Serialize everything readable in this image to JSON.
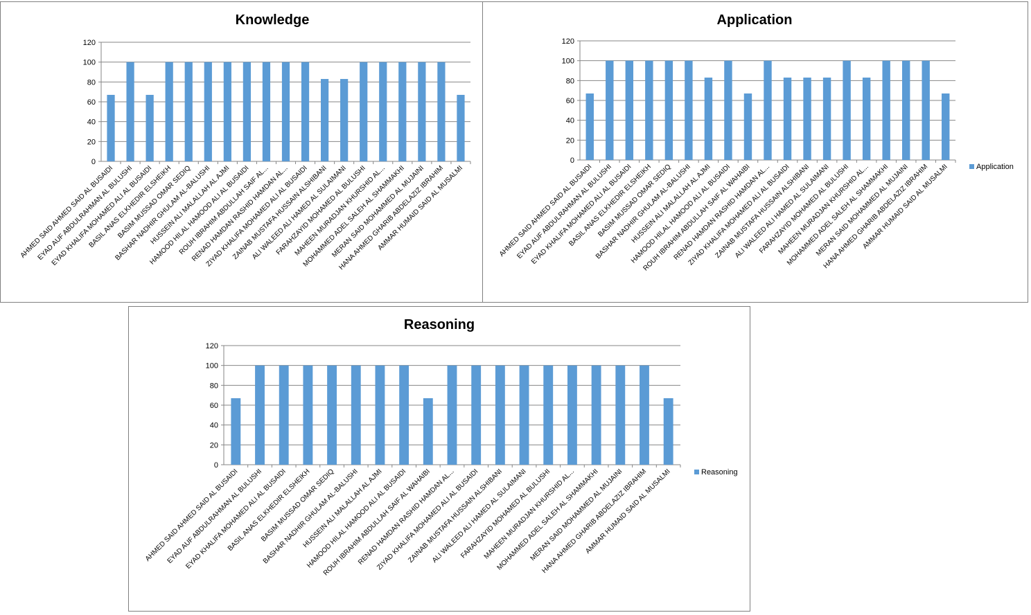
{
  "colors": {
    "bar": "#5B9BD5",
    "grid": "#868686",
    "axis": "#868686"
  },
  "chart_data": [
    {
      "id": "knowledge",
      "type": "bar",
      "title": "Knowledge",
      "legend": null,
      "ylim": [
        0,
        120
      ],
      "yticks": [
        "0",
        "20",
        "40",
        "60",
        "80",
        "100",
        "120"
      ],
      "categories": [
        "AHMED SAID AHMED  SAID AL BUSAIDI",
        "EYAD AUF ABDULRAHMAN AL BULUSHI",
        "EYAD KHALIFA MOHAMED ALI AL BUSAIDI",
        "BASIL ANAS ELKHEDIR ELSHEIKH",
        "BASIM MUSSAD OMAR SEDIQ",
        "BASHAR NADHIR GHULAM AL-BALUSHI",
        "HUSSEIN ALI MALALLAH AL AJMI",
        "HAMOOD HILAL HAMOOD ALI  AL BUSAIDI",
        "ROUH IBRAHIM ABDULLAH SAIF AL...",
        "RENAD HAMDAN RASHID HAMDAN AL...",
        "ZIYAD KHALIFA MOHAMED ALI AL BUSAIDI",
        "ZAINAB MUSTAFA HUSSAIN ALSHIBANI",
        "ALI WALEED ALI HAMED  AL SULAIMANI",
        "FARAHZAYID MOHAMED AL BULUSHI",
        "MAHEEN MURADJAN KHURSHID  AL...",
        "MOHAMMED ADEL SALEH AL SHAMMAKHI",
        "MERAN SAID MOHAMMED  AL MUJAINI",
        "HANA AHMED GHARIB ABDELAZIZ IBRAHIM",
        "AMMAR HUMAID SAID AL MUSALMI"
      ],
      "values": [
        67,
        100,
        67,
        100,
        100,
        100,
        100,
        100,
        100,
        100,
        100,
        83,
        83,
        100,
        100,
        100,
        100,
        100,
        67
      ]
    },
    {
      "id": "application",
      "type": "bar",
      "title": "Application",
      "legend": "Application",
      "ylim": [
        0,
        120
      ],
      "yticks": [
        "0",
        "20",
        "40",
        "60",
        "80",
        "100",
        "120"
      ],
      "categories": [
        "AHMED SAID AHMED  SAID AL BUSAIDI",
        "EYAD AUF ABDULRAHMAN AL BULUSHI",
        "EYAD KHALIFA MOHAMED ALI AL BUSAIDI",
        "BASIL ANAS ELKHEDIR ELSHEIKH",
        "BASIM MUSSAD OMAR SEDIQ",
        "BASHAR NADHIR GHULAM AL-BALUSHI",
        "HUSSEIN ALI MALALLAH AL AJMI",
        "HAMOOD HILAL HAMOOD ALI  AL BUSAIDI",
        "ROUH IBRAHIM ABDULLAH SAIF AL WAHAIBI",
        "RENAD HAMDAN RASHID HAMDAN AL...",
        "ZIYAD KHALIFA MOHAMED ALI AL BUSAIDI",
        "ZAINAB MUSTAFA HUSSAIN ALSHIBANI",
        "ALI WALEED ALI HAMED  AL SULAIMANI",
        "FARAHZAYID MOHAMED AL BULUSHI",
        "MAHEEN MURADJAN KHURSHID  AL...",
        "MOHAMMED ADEL SALEH AL SHAMMAKHI",
        "MERAN SAID MOHAMMED  AL MUJAINI",
        "HANA AHMED GHARIB ABDELAZIZ IBRAHIM",
        "AMMAR HUMAID SAID AL MUSALMI"
      ],
      "values": [
        67,
        100,
        100,
        100,
        100,
        100,
        83,
        100,
        67,
        100,
        83,
        83,
        83,
        100,
        83,
        100,
        100,
        100,
        67
      ]
    },
    {
      "id": "reasoning",
      "type": "bar",
      "title": "Reasoning",
      "legend": "Reasoning",
      "ylim": [
        0,
        120
      ],
      "yticks": [
        "0",
        "20",
        "40",
        "60",
        "80",
        "100",
        "120"
      ],
      "categories": [
        "AHMED SAID AHMED  SAID AL BUSAIDI",
        "EYAD AUF ABDULRAHMAN AL BULUSHI",
        "EYAD KHALIFA MOHAMED ALI AL BUSAIDI",
        "BASIL ANAS ELKHEDIR ELSHEIKH",
        "BASIM MUSSAD OMAR SEDIQ",
        "BASHAR NADHIR GHULAM AL-BALUSHI",
        "HUSSEIN ALI MALALLAH AL AJMI",
        "HAMOOD HILAL HAMOOD ALI  AL BUSAIDI",
        "ROUH IBRAHIM ABDULLAH SAIF AL WAHAIBI",
        "RENAD HAMDAN RASHID HAMDAN AL...",
        "ZIYAD KHALIFA MOHAMED ALI AL BUSAIDI",
        "ZAINAB MUSTAFA HUSSAIN ALSHIBANI",
        "ALI WALEED ALI HAMED  AL SULAIMANI",
        "FARAHZAYID MOHAMED AL BULUSHI",
        "MAHEEN MURADJAN KHURSHID  AL...",
        "MOHAMMED ADEL SALEH AL SHAMMAKHI",
        "MERAN SAID MOHAMMED  AL MUJAINI",
        "HANA AHMED GHARIB ABDELAZIZ IBRAHIM",
        "AMMAR HUMAID SAID AL MUSALMI"
      ],
      "values": [
        67,
        100,
        100,
        100,
        100,
        100,
        100,
        100,
        67,
        100,
        100,
        100,
        100,
        100,
        100,
        100,
        100,
        100,
        67
      ]
    }
  ]
}
